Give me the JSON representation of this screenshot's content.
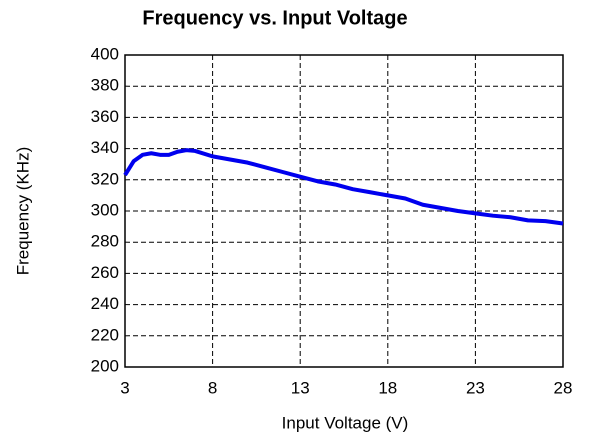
{
  "chart_data": {
    "type": "line",
    "title": "Frequency vs. Input Voltage",
    "x_label": "Input Voltage (V)",
    "y_label": "Frequency (KHz)",
    "x": [
      3,
      3.5,
      4,
      4.5,
      5,
      5.5,
      6,
      6.5,
      7,
      8,
      9,
      10,
      11,
      12,
      13,
      14,
      15,
      16,
      17,
      18,
      19,
      20,
      21,
      22,
      23,
      24,
      25,
      26,
      27,
      28
    ],
    "series": [
      {
        "name": "Frequency",
        "color": "#0000ee",
        "values": [
          323,
          332,
          336,
          337,
          336,
          336,
          338,
          339,
          338.5,
          335,
          333,
          331,
          328,
          325,
          322,
          319,
          317,
          314,
          312,
          310,
          308,
          304,
          302,
          300,
          298.5,
          297,
          296,
          294,
          293.5,
          292
        ]
      }
    ],
    "xlim": [
      3,
      28
    ],
    "xticks": [
      3,
      8,
      13,
      18,
      23,
      28
    ],
    "ylim": [
      200,
      400
    ],
    "yticks": [
      200,
      220,
      240,
      260,
      280,
      300,
      320,
      340,
      360,
      380,
      400
    ],
    "grid": true
  }
}
